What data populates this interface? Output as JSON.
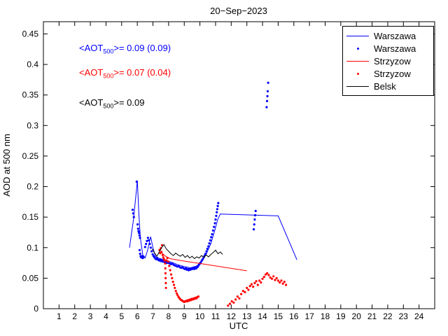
{
  "title": "20−Sep−2023",
  "annotations": [
    {
      "pre": "<AOT",
      "sub": "500",
      "post": ">= 0.09 (0.09)",
      "color": "#0000ff"
    },
    {
      "pre": "<AOT",
      "sub": "500",
      "post": ">= 0.07 (0.04)",
      "color": "#ff0000"
    },
    {
      "pre": "<AOT",
      "sub": "500",
      "post": ">= 0.09",
      "color": "#000000"
    }
  ],
  "legend": {
    "position": "top-right",
    "entries": [
      {
        "label": "Warszawa",
        "color": "#0000ff",
        "style": "line"
      },
      {
        "label": "Warszawa",
        "color": "#0000ff",
        "style": "marker"
      },
      {
        "label": "Strzyzow",
        "color": "#ff0000",
        "style": "line"
      },
      {
        "label": "Strzyzow",
        "color": "#ff0000",
        "style": "marker"
      },
      {
        "label": "Belsk",
        "color": "#000000",
        "style": "line"
      }
    ]
  },
  "chart_data": {
    "type": "line",
    "title": "20−Sep−2023",
    "xlabel": "UTC",
    "ylabel": "AOD at 500 nm",
    "xlim": [
      0,
      25
    ],
    "ylim": [
      0,
      0.47
    ],
    "grid": false,
    "legend_position": "top-right",
    "x_ticks": [
      1,
      2,
      3,
      4,
      5,
      6,
      7,
      8,
      9,
      10,
      11,
      12,
      13,
      14,
      15,
      16,
      17,
      18,
      19,
      20,
      21,
      22,
      23,
      24
    ],
    "y_ticks": [
      {
        "v": 0,
        "label": "0"
      },
      {
        "v": 0.05,
        "label": "0.05"
      },
      {
        "v": 0.1,
        "label": "0.1"
      },
      {
        "v": 0.15,
        "label": "0.15"
      },
      {
        "v": 0.2,
        "label": "0.2"
      },
      {
        "v": 0.25,
        "label": "0.25"
      },
      {
        "v": 0.3,
        "label": "0.3"
      },
      {
        "v": 0.35,
        "label": "0.35"
      },
      {
        "v": 0.4,
        "label": "0.4"
      },
      {
        "v": 0.45,
        "label": "0.45"
      }
    ],
    "series": [
      {
        "name": "Warszawa",
        "type": "line",
        "color": "#0000ff",
        "points": [
          [
            5.5,
            0.1
          ],
          [
            5.75,
            0.145
          ],
          [
            5.95,
            0.195
          ],
          [
            6.0,
            0.21
          ],
          [
            6.1,
            0.155
          ],
          [
            6.2,
            0.115
          ],
          [
            6.35,
            0.088
          ],
          [
            6.5,
            0.083
          ],
          [
            6.65,
            0.095
          ],
          [
            6.85,
            0.118
          ],
          [
            7.0,
            0.1
          ],
          [
            7.15,
            0.086
          ],
          [
            7.4,
            0.082
          ],
          [
            7.8,
            0.079
          ],
          [
            8.2,
            0.076
          ],
          [
            8.6,
            0.072
          ],
          [
            9.0,
            0.069
          ],
          [
            9.4,
            0.067
          ],
          [
            9.8,
            0.07
          ],
          [
            10.1,
            0.077
          ],
          [
            10.4,
            0.089
          ],
          [
            10.7,
            0.107
          ],
          [
            10.95,
            0.128
          ],
          [
            11.15,
            0.147
          ],
          [
            11.3,
            0.155
          ],
          [
            15.0,
            0.152
          ],
          [
            16.2,
            0.08
          ]
        ]
      },
      {
        "name": "Warszawa",
        "type": "scatter",
        "color": "#0000ff",
        "points": [
          [
            5.7,
            0.162
          ],
          [
            5.74,
            0.156
          ],
          [
            5.78,
            0.15
          ],
          [
            5.96,
            0.208
          ],
          [
            6.02,
            0.138
          ],
          [
            6.05,
            0.131
          ],
          [
            6.08,
            0.127
          ],
          [
            6.11,
            0.124
          ],
          [
            6.14,
            0.12
          ],
          [
            6.17,
            0.116
          ],
          [
            6.15,
            0.096
          ],
          [
            6.18,
            0.09
          ],
          [
            6.21,
            0.086
          ],
          [
            6.25,
            0.084
          ],
          [
            6.3,
            0.086
          ],
          [
            6.35,
            0.083
          ],
          [
            6.4,
            0.085
          ],
          [
            6.5,
            0.101
          ],
          [
            6.56,
            0.106
          ],
          [
            6.62,
            0.111
          ],
          [
            6.68,
            0.116
          ],
          [
            6.74,
            0.112
          ],
          [
            6.8,
            0.106
          ],
          [
            6.86,
            0.1
          ],
          [
            6.92,
            0.094
          ],
          [
            6.98,
            0.089
          ],
          [
            7.04,
            0.086
          ],
          [
            7.1,
            0.084
          ],
          [
            7.16,
            0.082
          ],
          [
            7.22,
            0.081
          ],
          [
            7.28,
            0.083
          ],
          [
            7.34,
            0.08
          ],
          [
            7.4,
            0.079
          ],
          [
            7.46,
            0.081
          ],
          [
            7.52,
            0.078
          ],
          [
            7.58,
            0.08
          ],
          [
            7.64,
            0.077
          ],
          [
            7.7,
            0.079
          ],
          [
            7.76,
            0.076
          ],
          [
            7.82,
            0.078
          ],
          [
            7.88,
            0.075
          ],
          [
            7.94,
            0.077
          ],
          [
            8.0,
            0.075
          ],
          [
            8.08,
            0.074
          ],
          [
            8.16,
            0.073
          ],
          [
            8.24,
            0.074
          ],
          [
            8.32,
            0.072
          ],
          [
            8.4,
            0.071
          ],
          [
            8.48,
            0.07
          ],
          [
            8.56,
            0.069
          ],
          [
            8.64,
            0.07
          ],
          [
            8.72,
            0.068
          ],
          [
            8.8,
            0.067
          ],
          [
            8.88,
            0.068
          ],
          [
            8.96,
            0.066
          ],
          [
            9.04,
            0.065
          ],
          [
            9.1,
            0.066
          ],
          [
            9.16,
            0.064
          ],
          [
            9.22,
            0.065
          ],
          [
            9.28,
            0.063
          ],
          [
            9.34,
            0.065
          ],
          [
            9.4,
            0.064
          ],
          [
            9.46,
            0.066
          ],
          [
            9.52,
            0.065
          ],
          [
            9.58,
            0.067
          ],
          [
            9.64,
            0.065
          ],
          [
            9.7,
            0.067
          ],
          [
            9.76,
            0.066
          ],
          [
            9.82,
            0.068
          ],
          [
            9.88,
            0.069
          ],
          [
            9.94,
            0.072
          ],
          [
            10.0,
            0.074
          ],
          [
            10.06,
            0.076
          ],
          [
            10.12,
            0.079
          ],
          [
            10.18,
            0.081
          ],
          [
            10.24,
            0.084
          ],
          [
            10.3,
            0.087
          ],
          [
            10.36,
            0.09
          ],
          [
            10.42,
            0.094
          ],
          [
            10.48,
            0.098
          ],
          [
            10.54,
            0.102
          ],
          [
            10.6,
            0.107
          ],
          [
            10.66,
            0.112
          ],
          [
            10.72,
            0.117
          ],
          [
            10.78,
            0.122
          ],
          [
            10.84,
            0.128
          ],
          [
            10.9,
            0.134
          ],
          [
            10.96,
            0.14
          ],
          [
            11.0,
            0.146
          ],
          [
            11.04,
            0.152
          ],
          [
            11.08,
            0.158
          ],
          [
            11.11,
            0.163
          ],
          [
            11.14,
            0.168
          ],
          [
            11.17,
            0.173
          ],
          [
            13.44,
            0.13
          ],
          [
            13.47,
            0.138
          ],
          [
            13.5,
            0.146
          ],
          [
            13.53,
            0.153
          ],
          [
            13.56,
            0.16
          ],
          [
            14.26,
            0.33
          ],
          [
            14.29,
            0.34
          ],
          [
            14.31,
            0.348
          ],
          [
            14.33,
            0.356
          ],
          [
            14.36,
            0.37
          ]
        ]
      },
      {
        "name": "Strzyzow",
        "type": "line",
        "color": "#ff0000",
        "points": [
          [
            7.5,
            0.093
          ],
          [
            7.8,
            0.086
          ],
          [
            8.1,
            0.082
          ],
          [
            9.0,
            0.078
          ],
          [
            10.0,
            0.074
          ],
          [
            11.0,
            0.07
          ],
          [
            12.0,
            0.066
          ],
          [
            13.0,
            0.062
          ]
        ]
      },
      {
        "name": "Strzyzow",
        "type": "scatter",
        "color": "#ff0000",
        "points": [
          [
            7.42,
            0.096
          ],
          [
            7.46,
            0.091
          ],
          [
            7.5,
            0.099
          ],
          [
            7.54,
            0.093
          ],
          [
            7.58,
            0.104
          ],
          [
            7.62,
            0.088
          ],
          [
            7.66,
            0.084
          ],
          [
            7.7,
            0.081
          ],
          [
            7.74,
            0.079
          ],
          [
            7.78,
            0.074
          ],
          [
            7.79,
            0.066
          ],
          [
            7.8,
            0.058
          ],
          [
            7.81,
            0.05
          ],
          [
            7.82,
            0.042
          ],
          [
            7.83,
            0.034
          ],
          [
            7.86,
            0.079
          ],
          [
            7.92,
            0.083
          ],
          [
            7.98,
            0.077
          ],
          [
            8.04,
            0.07
          ],
          [
            8.1,
            0.063
          ],
          [
            8.16,
            0.056
          ],
          [
            8.22,
            0.05
          ],
          [
            8.28,
            0.044
          ],
          [
            8.34,
            0.039
          ],
          [
            8.4,
            0.034
          ],
          [
            8.46,
            0.029
          ],
          [
            8.52,
            0.025
          ],
          [
            8.58,
            0.022
          ],
          [
            8.64,
            0.019
          ],
          [
            8.7,
            0.017
          ],
          [
            8.76,
            0.015
          ],
          [
            8.82,
            0.014
          ],
          [
            8.88,
            0.013
          ],
          [
            8.94,
            0.012
          ],
          [
            9.0,
            0.011
          ],
          [
            9.06,
            0.012
          ],
          [
            9.12,
            0.013
          ],
          [
            9.18,
            0.012
          ],
          [
            9.24,
            0.014
          ],
          [
            9.3,
            0.013
          ],
          [
            9.36,
            0.015
          ],
          [
            9.42,
            0.014
          ],
          [
            9.48,
            0.016
          ],
          [
            9.54,
            0.015
          ],
          [
            9.6,
            0.017
          ],
          [
            9.66,
            0.016
          ],
          [
            9.72,
            0.018
          ],
          [
            9.78,
            0.017
          ],
          [
            9.84,
            0.019
          ],
          [
            9.9,
            0.02
          ],
          [
            11.8,
            0.005
          ],
          [
            11.92,
            0.008
          ],
          [
            12.04,
            0.012
          ],
          [
            12.16,
            0.01
          ],
          [
            12.28,
            0.015
          ],
          [
            12.4,
            0.02
          ],
          [
            12.52,
            0.017
          ],
          [
            12.64,
            0.024
          ],
          [
            12.76,
            0.029
          ],
          [
            12.88,
            0.027
          ],
          [
            13.0,
            0.034
          ],
          [
            13.1,
            0.031
          ],
          [
            13.2,
            0.037
          ],
          [
            13.3,
            0.04
          ],
          [
            13.4,
            0.036
          ],
          [
            13.5,
            0.042
          ],
          [
            13.6,
            0.045
          ],
          [
            13.7,
            0.039
          ],
          [
            13.8,
            0.046
          ],
          [
            13.9,
            0.043
          ],
          [
            14.0,
            0.049
          ],
          [
            14.1,
            0.052
          ],
          [
            14.2,
            0.056
          ],
          [
            14.3,
            0.058
          ],
          [
            14.4,
            0.055
          ],
          [
            14.5,
            0.051
          ],
          [
            14.6,
            0.049
          ],
          [
            14.7,
            0.053
          ],
          [
            14.8,
            0.047
          ],
          [
            14.9,
            0.05
          ],
          [
            15.0,
            0.046
          ],
          [
            15.1,
            0.043
          ],
          [
            15.2,
            0.046
          ],
          [
            15.3,
            0.041
          ],
          [
            15.4,
            0.044
          ],
          [
            15.5,
            0.039
          ]
        ]
      },
      {
        "name": "Belsk",
        "type": "line",
        "color": "#000000",
        "points": [
          [
            6.95,
            0.098
          ],
          [
            7.1,
            0.091
          ],
          [
            7.25,
            0.086
          ],
          [
            7.4,
            0.093
          ],
          [
            7.55,
            0.1
          ],
          [
            7.7,
            0.105
          ],
          [
            7.85,
            0.098
          ],
          [
            8.0,
            0.094
          ],
          [
            8.15,
            0.09
          ],
          [
            8.3,
            0.087
          ],
          [
            8.45,
            0.091
          ],
          [
            8.6,
            0.088
          ],
          [
            8.75,
            0.086
          ],
          [
            8.9,
            0.089
          ],
          [
            9.05,
            0.084
          ],
          [
            9.2,
            0.087
          ],
          [
            9.35,
            0.083
          ],
          [
            9.5,
            0.086
          ],
          [
            9.65,
            0.082
          ],
          [
            9.8,
            0.085
          ],
          [
            9.95,
            0.083
          ],
          [
            10.1,
            0.087
          ],
          [
            10.25,
            0.084
          ],
          [
            10.4,
            0.088
          ],
          [
            10.55,
            0.085
          ],
          [
            10.7,
            0.089
          ],
          [
            10.85,
            0.092
          ],
          [
            11.0,
            0.096
          ],
          [
            11.15,
            0.09
          ],
          [
            11.3,
            0.093
          ],
          [
            11.45,
            0.089
          ]
        ]
      }
    ]
  }
}
